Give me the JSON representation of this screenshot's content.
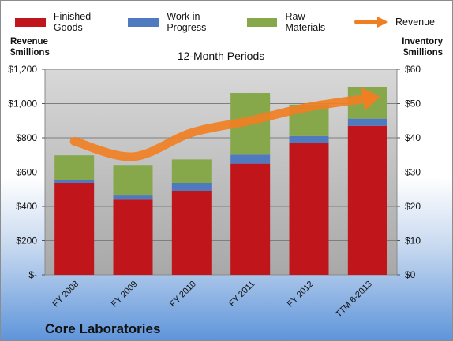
{
  "chart_data": {
    "type": "bar",
    "stacked": true,
    "title": "",
    "subtitle": "12-Month Periods",
    "company": "Core Laboratories",
    "categories": [
      "FY 2008",
      "FY 2009",
      "FY 2010",
      "FY 2011",
      "FY 2012",
      "TTM 6-2013"
    ],
    "left_axis": {
      "title": "Revenue\n$millions",
      "ylim": [
        0,
        1200
      ],
      "ticks": [
        0,
        200,
        400,
        600,
        800,
        1000,
        1200
      ],
      "tick_labels": [
        "$-",
        "$200",
        "$400",
        "$600",
        "$800",
        "$1,000",
        "$1,200"
      ]
    },
    "right_axis": {
      "title": "Inventory\n$millions",
      "ylim": [
        0,
        60
      ],
      "ticks": [
        0,
        10,
        20,
        30,
        40,
        50,
        60
      ],
      "tick_labels": [
        "$0",
        "$10",
        "$20",
        "$30",
        "$40",
        "$50",
        "$60"
      ]
    },
    "series": [
      {
        "name": "Finished Goods",
        "axis": "right",
        "color": "#c0161b",
        "values": [
          26.8,
          22.0,
          24.4,
          32.5,
          38.5,
          43.5
        ]
      },
      {
        "name": "Work in Progress",
        "axis": "right",
        "color": "#4f7ac0",
        "values": [
          0.8,
          1.2,
          2.5,
          2.6,
          2.0,
          2.1
        ]
      },
      {
        "name": "Raw Materials",
        "axis": "right",
        "color": "#86a84a",
        "values": [
          7.3,
          8.7,
          6.8,
          18.0,
          9.2,
          9.2
        ]
      },
      {
        "name": "Revenue",
        "axis": "left",
        "type": "line",
        "color": "#f07f24",
        "values": [
          780,
          690,
          830,
          900,
          980,
          1030
        ]
      }
    ],
    "grid": true,
    "legend": "top"
  }
}
